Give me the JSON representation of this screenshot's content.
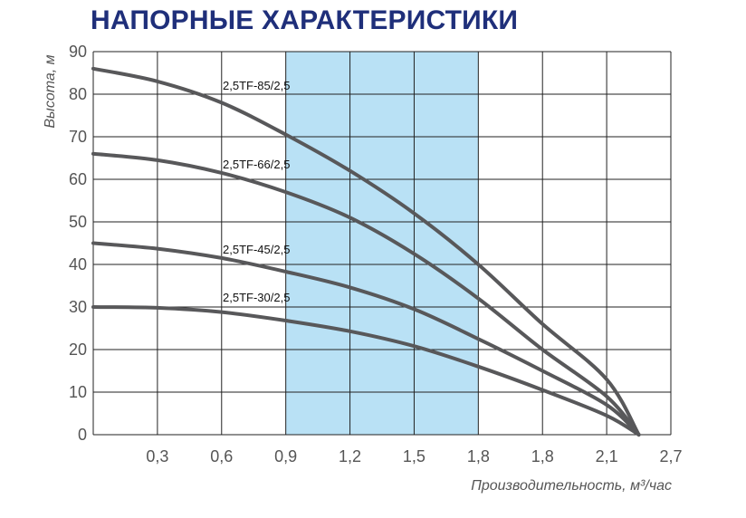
{
  "chart_data": {
    "type": "line",
    "title": "НАПОРНЫЕ ХАРАКТЕРИСТИКИ",
    "ylabel": "Высота, м",
    "xlabel": "Производительность, м³/час",
    "ylim": [
      0,
      90
    ],
    "y_ticks": [
      0,
      10,
      20,
      30,
      40,
      50,
      60,
      70,
      80,
      90
    ],
    "x_categories": [
      "",
      "0,3",
      "0,6",
      "0,9",
      "1,2",
      "1,5",
      "1,8",
      "1,8",
      "2,1",
      "2,7"
    ],
    "grid": true,
    "highlight_band": {
      "from_index": 3,
      "to_index": 6,
      "color": "#b9e1f5"
    },
    "series": [
      {
        "name": "2,5TF-85/2,5",
        "points": [
          [
            0,
            86
          ],
          [
            1,
            83
          ],
          [
            2,
            78
          ],
          [
            3,
            70.5
          ],
          [
            4,
            62
          ],
          [
            5,
            52
          ],
          [
            6,
            40
          ],
          [
            7,
            26
          ],
          [
            8,
            13
          ],
          [
            8.5,
            0
          ]
        ]
      },
      {
        "name": "2,5TF-66/2,5",
        "points": [
          [
            0,
            66
          ],
          [
            1,
            64.5
          ],
          [
            2,
            61.5
          ],
          [
            3,
            57
          ],
          [
            4,
            51
          ],
          [
            5,
            42.5
          ],
          [
            6,
            32
          ],
          [
            7,
            20
          ],
          [
            8,
            9
          ],
          [
            8.5,
            0
          ]
        ]
      },
      {
        "name": "2,5TF-45/2,5",
        "points": [
          [
            0,
            45
          ],
          [
            1,
            43.7
          ],
          [
            2,
            41.5
          ],
          [
            3,
            38.3
          ],
          [
            4,
            34.6
          ],
          [
            5,
            29.5
          ],
          [
            6,
            22.5
          ],
          [
            7,
            15
          ],
          [
            8,
            7
          ],
          [
            8.5,
            0
          ]
        ]
      },
      {
        "name": "2,5TF-30/2,5",
        "points": [
          [
            0,
            30
          ],
          [
            1,
            29.8
          ],
          [
            2,
            28.8
          ],
          [
            3,
            26.8
          ],
          [
            4,
            24.3
          ],
          [
            5,
            20.8
          ],
          [
            6,
            16
          ],
          [
            7,
            10.5
          ],
          [
            8,
            4.5
          ],
          [
            8.5,
            0
          ]
        ]
      }
    ],
    "colors": {
      "curve": "#58585a",
      "grid": "#222222",
      "band": "#b9e1f5",
      "title": "#1f2f7a",
      "text": "#555555"
    }
  }
}
